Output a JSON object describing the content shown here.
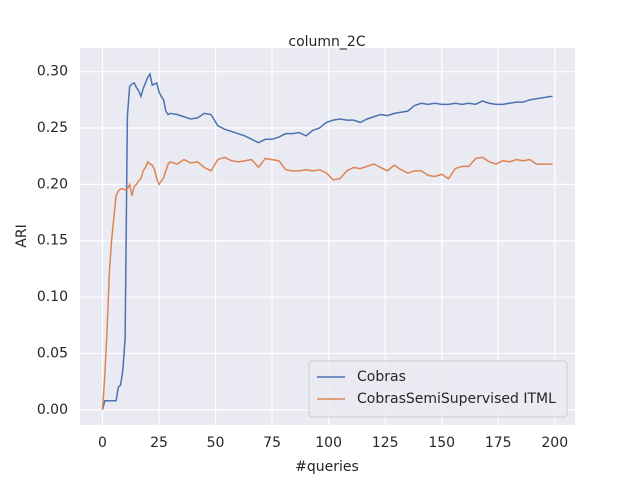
{
  "chart_data": {
    "type": "line",
    "title": "column_2C",
    "x_label": "#queries",
    "y_label": "ARI",
    "x": [
      0,
      1,
      2,
      3,
      4,
      5,
      6,
      7,
      8,
      9,
      10,
      11,
      12,
      13,
      14,
      15,
      16,
      17,
      18,
      19,
      20,
      21,
      22,
      23,
      24,
      25,
      26,
      27,
      28,
      29,
      30,
      33,
      36,
      39,
      42,
      45,
      48,
      51,
      54,
      57,
      60,
      63,
      66,
      69,
      72,
      75,
      78,
      81,
      84,
      87,
      90,
      93,
      96,
      99,
      102,
      105,
      108,
      111,
      114,
      117,
      120,
      123,
      126,
      129,
      132,
      135,
      138,
      141,
      144,
      147,
      150,
      153,
      156,
      159,
      162,
      165,
      168,
      171,
      174,
      177,
      180,
      183,
      186,
      189,
      192,
      195,
      198,
      199
    ],
    "series": [
      {
        "name": "Cobras",
        "color": "#4c72b0",
        "values": [
          0,
          0.008,
          0.008,
          0.008,
          0.008,
          0.008,
          0.008,
          0.02,
          0.022,
          0.035,
          0.063,
          0.26,
          0.287,
          0.289,
          0.29,
          0.286,
          0.283,
          0.278,
          0.285,
          0.29,
          0.295,
          0.298,
          0.288,
          0.289,
          0.29,
          0.282,
          0.278,
          0.275,
          0.265,
          0.262,
          0.263,
          0.262,
          0.26,
          0.258,
          0.259,
          0.263,
          0.262,
          0.252,
          0.249,
          0.247,
          0.245,
          0.243,
          0.24,
          0.237,
          0.24,
          0.24,
          0.242,
          0.245,
          0.245,
          0.246,
          0.243,
          0.248,
          0.25,
          0.255,
          0.257,
          0.258,
          0.257,
          0.257,
          0.255,
          0.258,
          0.26,
          0.262,
          0.261,
          0.263,
          0.264,
          0.265,
          0.27,
          0.272,
          0.271,
          0.272,
          0.271,
          0.271,
          0.272,
          0.271,
          0.272,
          0.271,
          0.274,
          0.272,
          0.271,
          0.271,
          0.272,
          0.273,
          0.273,
          0.275,
          0.276,
          0.277,
          0.278,
          0.278
        ]
      },
      {
        "name": "CobrasSemiSupervised ITML",
        "color": "#dd8452",
        "values": [
          0,
          0.03,
          0.07,
          0.12,
          0.15,
          0.17,
          0.19,
          0.194,
          0.196,
          0.196,
          0.195,
          0.196,
          0.2,
          0.19,
          0.198,
          0.2,
          0.203,
          0.205,
          0.212,
          0.215,
          0.22,
          0.218,
          0.217,
          0.213,
          0.205,
          0.2,
          0.203,
          0.206,
          0.212,
          0.218,
          0.22,
          0.218,
          0.222,
          0.219,
          0.22,
          0.215,
          0.212,
          0.222,
          0.224,
          0.221,
          0.22,
          0.221,
          0.222,
          0.215,
          0.223,
          0.222,
          0.221,
          0.213,
          0.212,
          0.212,
          0.213,
          0.212,
          0.213,
          0.21,
          0.204,
          0.205,
          0.212,
          0.215,
          0.214,
          0.216,
          0.218,
          0.215,
          0.212,
          0.217,
          0.213,
          0.21,
          0.212,
          0.212,
          0.208,
          0.207,
          0.209,
          0.205,
          0.214,
          0.216,
          0.216,
          0.223,
          0.224,
          0.22,
          0.218,
          0.221,
          0.22,
          0.222,
          0.221,
          0.222,
          0.218,
          0.218,
          0.218,
          0.218
        ]
      }
    ],
    "xlim": [
      -9.95,
      208.95
    ],
    "ylim": [
      -0.0135,
      0.321
    ],
    "xticks": [
      0,
      25,
      50,
      75,
      100,
      125,
      150,
      175,
      200
    ],
    "yticks": [
      {
        "value": 0,
        "label": "0.00"
      },
      {
        "value": 0.05,
        "label": "0.05"
      },
      {
        "value": 0.1,
        "label": "0.10"
      },
      {
        "value": 0.15,
        "label": "0.15"
      },
      {
        "value": 0.2,
        "label": "0.20"
      },
      {
        "value": 0.25,
        "label": "0.25"
      },
      {
        "value": 0.3,
        "label": "0.30"
      }
    ],
    "grid": true,
    "legend": "lower right"
  }
}
